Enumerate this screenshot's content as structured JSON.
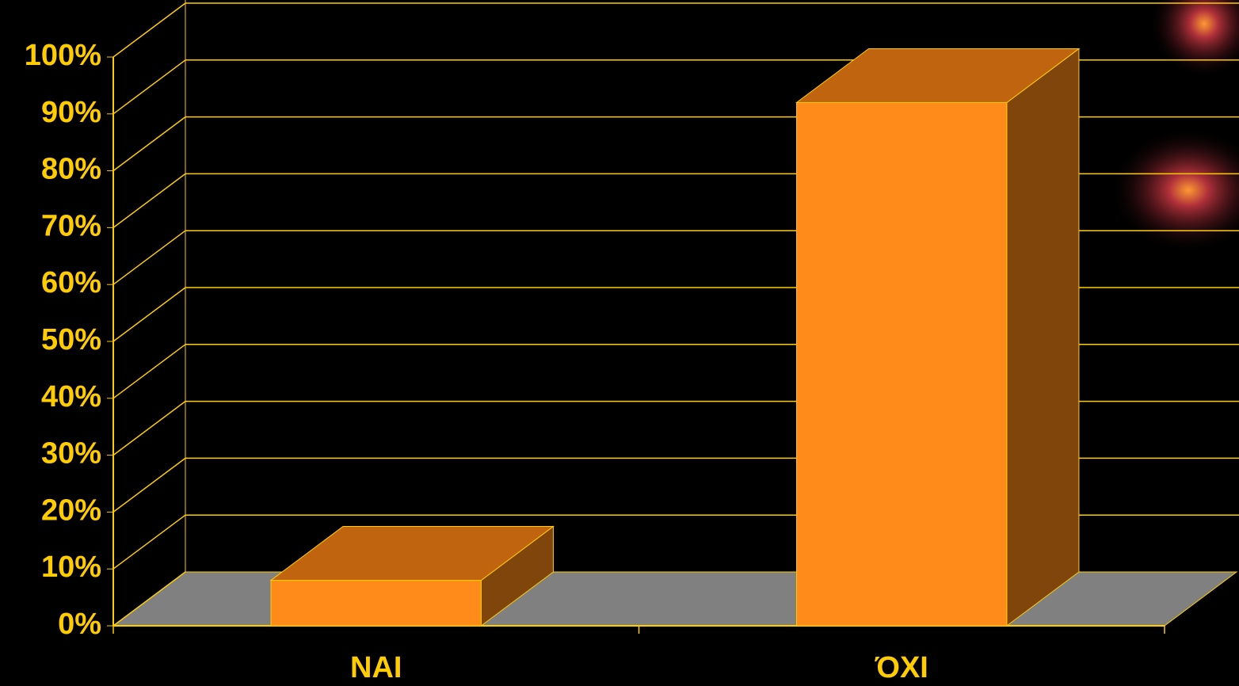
{
  "chart_data": {
    "type": "bar3d",
    "categories": [
      "NAI",
      "ΌΧΙ"
    ],
    "values": [
      8,
      92
    ],
    "color": "#FF8C1A",
    "ylim": [
      0,
      100
    ],
    "yticks": [
      {
        "value": 0,
        "label": "0%"
      },
      {
        "value": 10,
        "label": "10%"
      },
      {
        "value": 20,
        "label": "20%"
      },
      {
        "value": 30,
        "label": "30%"
      },
      {
        "value": 40,
        "label": "40%"
      },
      {
        "value": 50,
        "label": "50%"
      },
      {
        "value": 60,
        "label": "60%"
      },
      {
        "value": 70,
        "label": "70%"
      },
      {
        "value": 80,
        "label": "80%"
      },
      {
        "value": 90,
        "label": "90%"
      },
      {
        "value": 100,
        "label": "100%"
      }
    ],
    "grid": true
  }
}
